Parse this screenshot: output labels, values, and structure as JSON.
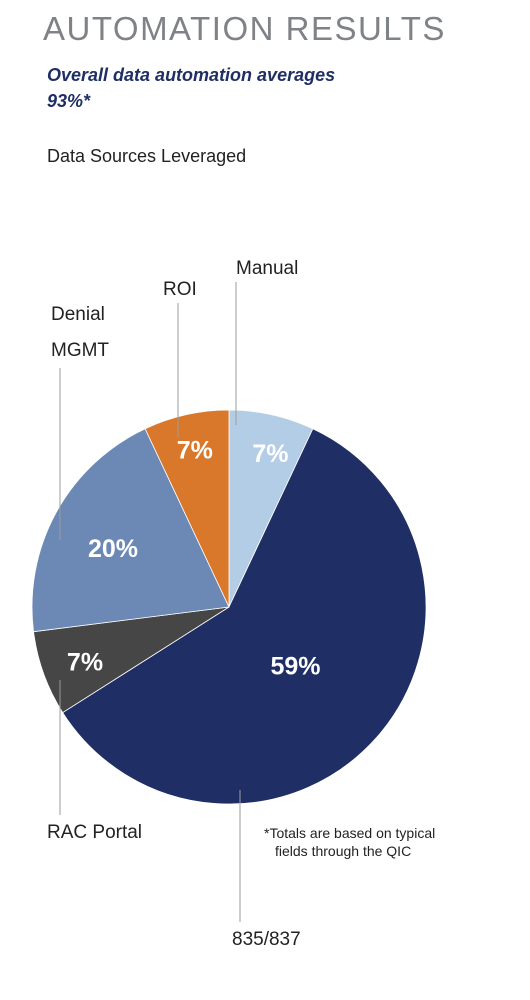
{
  "header": {
    "title": "AUTOMATION RESULTS",
    "subtitle": "Overall data automation averages 93%*",
    "section_label": "Data Sources Leveraged"
  },
  "footnote": {
    "line1": "*Totals are based on typical",
    "line2": "fields through the QIC"
  },
  "colors": {
    "manual": "#b4cde6",
    "835_837": "#1f2f66",
    "rac_portal": "#464646",
    "denial_mgmt": "#6b89b4",
    "roi": "#d9782a"
  },
  "chart_data": {
    "type": "pie",
    "title": "Data Sources Leveraged",
    "slices": [
      {
        "label": "Manual",
        "value": 7,
        "display": "7%",
        "color_key": "manual"
      },
      {
        "label": "835/837",
        "value": 59,
        "display": "59%",
        "color_key": "835_837"
      },
      {
        "label": "RAC Portal",
        "value": 7,
        "display": "7%",
        "color_key": "rac_portal"
      },
      {
        "label": "Denial MGMT",
        "value": 20,
        "display": "20%",
        "color_key": "denial_mgmt"
      },
      {
        "label": "ROI",
        "value": 7,
        "display": "7%",
        "color_key": "roi"
      }
    ]
  }
}
